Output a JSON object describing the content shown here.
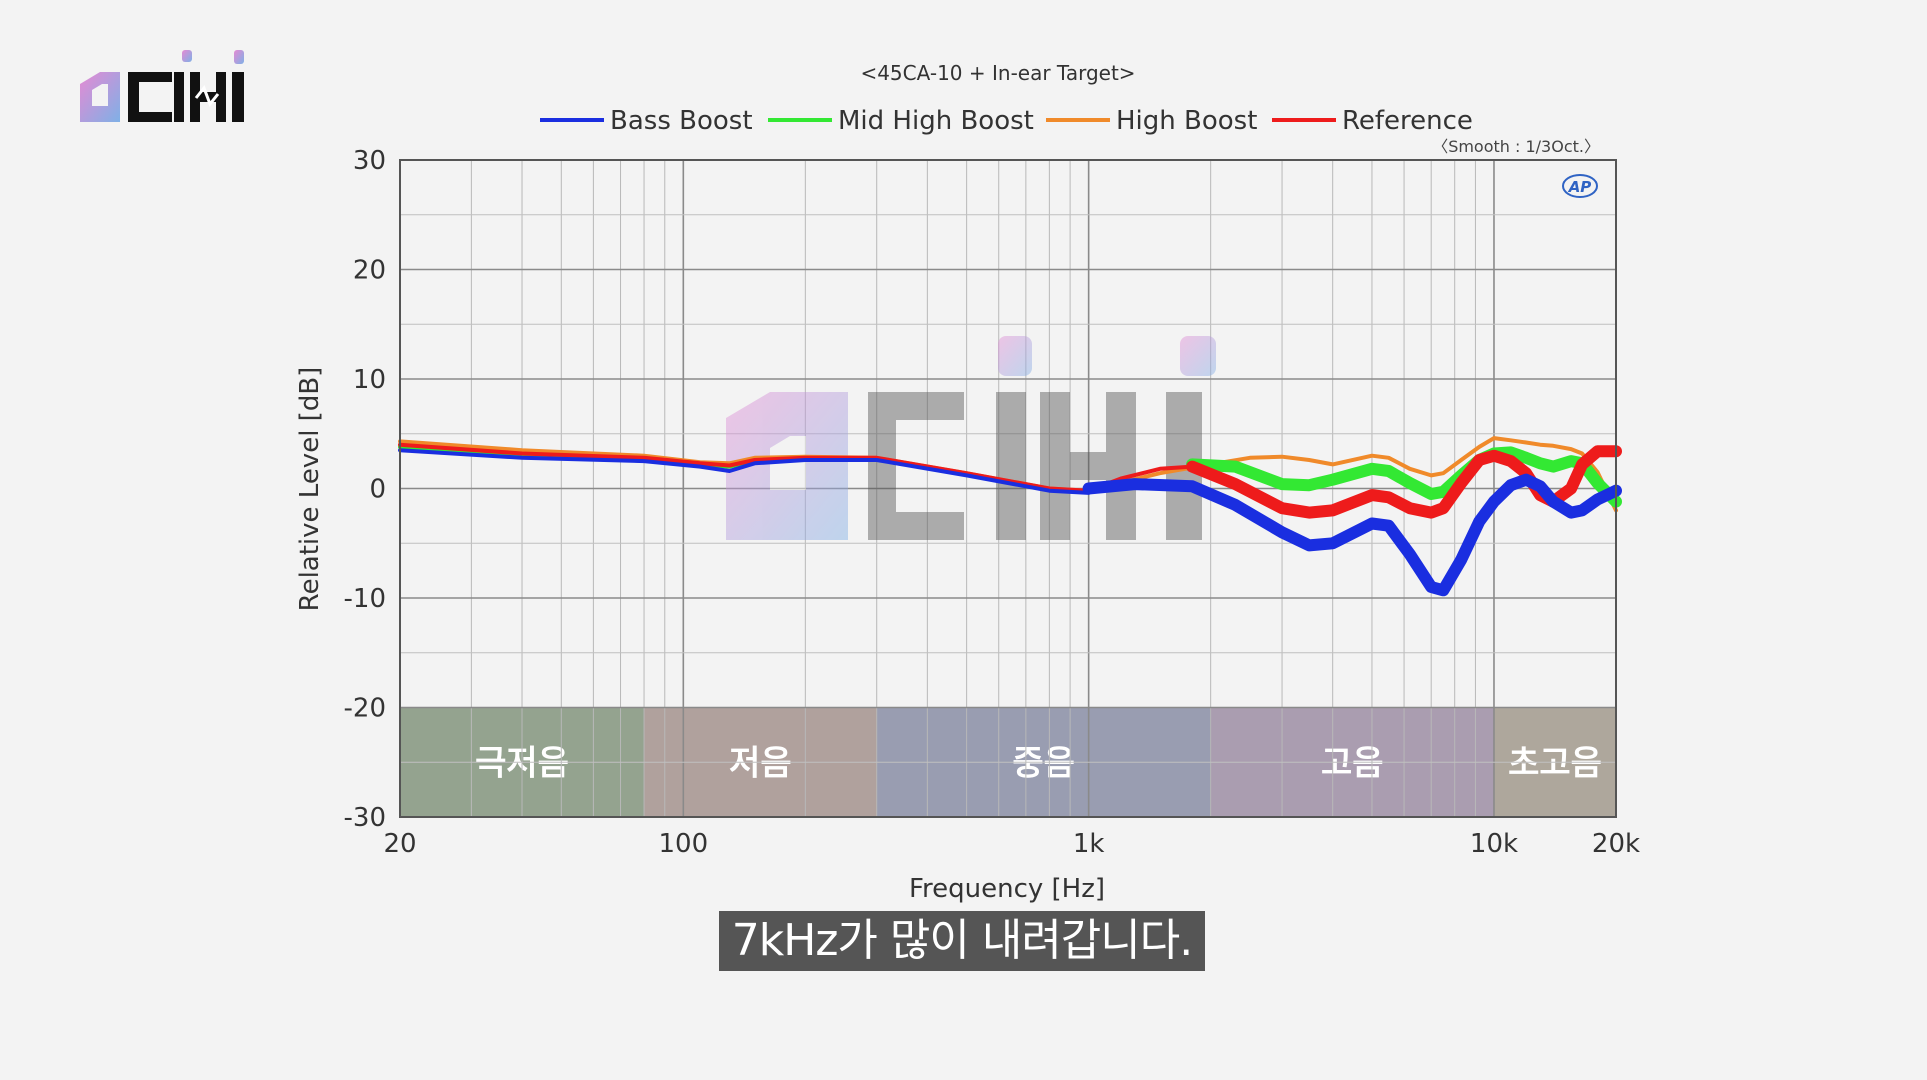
{
  "brand": {
    "name": "dimi logo",
    "colors": {
      "pink": "#e08ad0",
      "blue": "#7aa8e0",
      "black": "#111111"
    }
  },
  "subtitle": "7kHz가 많이 내려갑니다.",
  "chart_data": {
    "type": "line",
    "title": "<45CA-10 + In-ear Target>",
    "note": "〈Smooth : 1/3Oct.〉",
    "badge": "AP",
    "xlabel": "Frequency [Hz]",
    "ylabel": "Relative Level [dB]",
    "xscale": "log",
    "xlim": [
      20,
      20000
    ],
    "ylim": [
      -30,
      30
    ],
    "xticks": [
      {
        "value": 20,
        "label": "20"
      },
      {
        "value": 100,
        "label": "100"
      },
      {
        "value": 1000,
        "label": "1k"
      },
      {
        "value": 10000,
        "label": "10k"
      },
      {
        "value": 20000,
        "label": "20k"
      }
    ],
    "yticks": [
      30,
      20,
      10,
      0,
      -10,
      -20,
      -30
    ],
    "grid": true,
    "legend_position": "top",
    "bands": [
      {
        "label": "극저음",
        "from": 20,
        "to": 80,
        "color": "#8a9a84"
      },
      {
        "label": "저음",
        "from": 80,
        "to": 300,
        "color": "#a99893"
      },
      {
        "label": "중음",
        "from": 300,
        "to": 2000,
        "color": "#8f93aa"
      },
      {
        "label": "고음",
        "from": 2000,
        "to": 10000,
        "color": "#a294a8"
      },
      {
        "label": "초고음",
        "from": 10000,
        "to": 20000,
        "color": "#a69e92"
      }
    ],
    "band_range": [
      -30,
      -20
    ],
    "series": [
      {
        "name": "Bass Boost",
        "color": "#1a2ee0",
        "points": [
          [
            20,
            3.5
          ],
          [
            40,
            2.8
          ],
          [
            80,
            2.5
          ],
          [
            110,
            2.0
          ],
          [
            130,
            1.6
          ],
          [
            150,
            2.3
          ],
          [
            200,
            2.6
          ],
          [
            300,
            2.6
          ],
          [
            500,
            1.2
          ],
          [
            800,
            -0.2
          ],
          [
            1000,
            -0.4
          ]
        ],
        "bold": [
          [
            1000,
            0
          ],
          [
            1300,
            0.4
          ],
          [
            1800,
            0.2
          ],
          [
            2300,
            -1.5
          ],
          [
            3000,
            -4
          ],
          [
            3500,
            -5.2
          ],
          [
            4000,
            -5
          ],
          [
            5000,
            -3.2
          ],
          [
            5500,
            -3.4
          ],
          [
            6200,
            -6
          ],
          [
            7000,
            -9
          ],
          [
            7500,
            -9.3
          ],
          [
            8300,
            -6.5
          ],
          [
            9200,
            -3
          ],
          [
            10000,
            -1.2
          ],
          [
            11000,
            0.3
          ],
          [
            12000,
            0.8
          ],
          [
            13000,
            0.2
          ],
          [
            14000,
            -1.2
          ],
          [
            15500,
            -2.2
          ],
          [
            16500,
            -2.0
          ],
          [
            18000,
            -1.0
          ],
          [
            20000,
            -0.2
          ]
        ]
      },
      {
        "name": "Mid High Boost",
        "color": "#33e833",
        "points": [
          [
            20,
            3.8
          ],
          [
            40,
            3.0
          ],
          [
            80,
            2.6
          ],
          [
            110,
            2.2
          ],
          [
            130,
            2.0
          ],
          [
            150,
            2.5
          ],
          [
            200,
            2.7
          ],
          [
            300,
            2.7
          ],
          [
            500,
            1.3
          ],
          [
            800,
            -0.1
          ],
          [
            1000,
            -0.3
          ]
        ],
        "bold": [
          [
            1800,
            2.2
          ],
          [
            2300,
            2.0
          ],
          [
            3000,
            0.4
          ],
          [
            3500,
            0.3
          ],
          [
            4000,
            0.8
          ],
          [
            5000,
            1.8
          ],
          [
            5500,
            1.6
          ],
          [
            6200,
            0.5
          ],
          [
            7000,
            -0.5
          ],
          [
            7500,
            -0.3
          ],
          [
            8300,
            1.2
          ],
          [
            9200,
            2.6
          ],
          [
            10000,
            3.2
          ],
          [
            11000,
            3.3
          ],
          [
            12000,
            2.8
          ],
          [
            13000,
            2.3
          ],
          [
            14000,
            2.0
          ],
          [
            15500,
            2.5
          ],
          [
            16500,
            2.3
          ],
          [
            18000,
            0.5
          ],
          [
            20000,
            -1.2
          ]
        ]
      },
      {
        "name": "High Boost",
        "color": "#f08a2a",
        "points": [
          [
            20,
            4.3
          ],
          [
            40,
            3.5
          ],
          [
            80,
            3.0
          ],
          [
            110,
            2.4
          ],
          [
            130,
            2.3
          ],
          [
            150,
            2.8
          ],
          [
            200,
            2.9
          ],
          [
            300,
            2.8
          ],
          [
            500,
            1.4
          ],
          [
            800,
            0
          ],
          [
            1000,
            -0.2
          ],
          [
            1500,
            1.4
          ],
          [
            2000,
            2.2
          ],
          [
            2500,
            2.8
          ],
          [
            3000,
            2.9
          ],
          [
            3500,
            2.6
          ],
          [
            4000,
            2.2
          ],
          [
            5000,
            3.0
          ],
          [
            5500,
            2.8
          ],
          [
            6200,
            1.8
          ],
          [
            7000,
            1.2
          ],
          [
            7500,
            1.4
          ],
          [
            8300,
            2.6
          ],
          [
            9200,
            3.8
          ],
          [
            10000,
            4.6
          ],
          [
            11000,
            4.4
          ],
          [
            12000,
            4.2
          ],
          [
            13000,
            4.0
          ],
          [
            14000,
            3.9
          ],
          [
            15500,
            3.6
          ],
          [
            16500,
            3.2
          ],
          [
            18000,
            1.5
          ],
          [
            20000,
            -2.0
          ]
        ]
      },
      {
        "name": "Reference",
        "color": "#ee1b1b",
        "points": [
          [
            20,
            4.0
          ],
          [
            40,
            3.2
          ],
          [
            80,
            2.8
          ],
          [
            110,
            2.3
          ],
          [
            130,
            2.1
          ],
          [
            150,
            2.6
          ],
          [
            200,
            2.8
          ],
          [
            300,
            2.8
          ],
          [
            500,
            1.4
          ],
          [
            800,
            0
          ],
          [
            1000,
            -0.2
          ],
          [
            1200,
            0.9
          ],
          [
            1500,
            1.8
          ],
          [
            1800,
            2.0
          ]
        ],
        "bold": [
          [
            1800,
            2.0
          ],
          [
            2300,
            0.4
          ],
          [
            3000,
            -1.8
          ],
          [
            3500,
            -2.2
          ],
          [
            4000,
            -2.0
          ],
          [
            5000,
            -0.6
          ],
          [
            5500,
            -0.8
          ],
          [
            6200,
            -1.8
          ],
          [
            7000,
            -2.2
          ],
          [
            7500,
            -1.8
          ],
          [
            8300,
            0.5
          ],
          [
            9200,
            2.6
          ],
          [
            10000,
            3.0
          ],
          [
            11000,
            2.5
          ],
          [
            12000,
            1.4
          ],
          [
            13000,
            -0.6
          ],
          [
            14000,
            -1.2
          ],
          [
            15500,
            0
          ],
          [
            16500,
            2.2
          ],
          [
            18000,
            3.4
          ],
          [
            20000,
            3.4
          ]
        ]
      }
    ]
  }
}
